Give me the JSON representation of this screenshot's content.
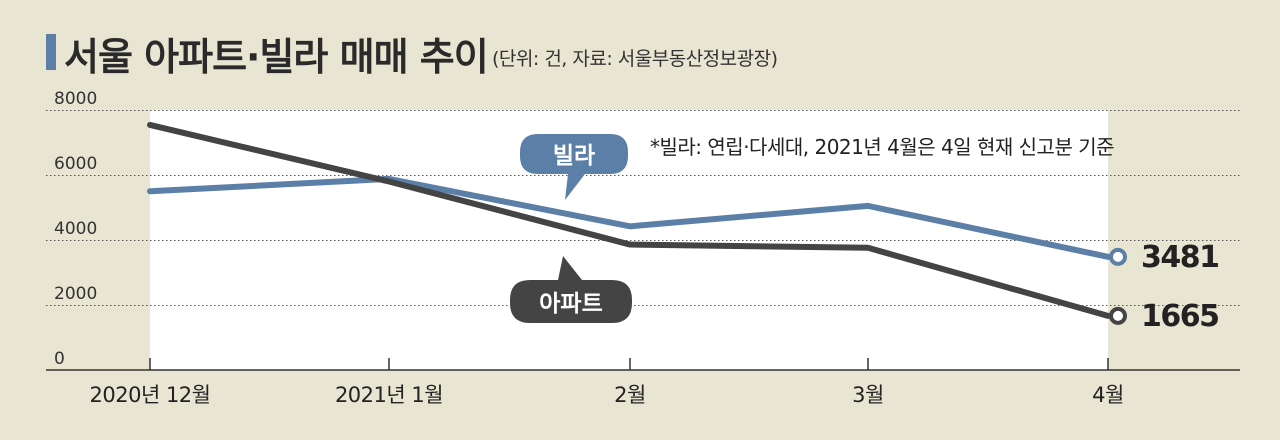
{
  "title": "서울 아파트·빌라 매매 추이",
  "subtitle": "(단위: 건, 자료: 서울부동산정보광장)",
  "note": "*빌라: 연립·다세대, 2021년 4월은 4일 현재 신고분 기준",
  "colors": {
    "villa": "#5b7fa6",
    "apartment": "#444444",
    "background": "#e8e5d3",
    "plot_fill": "#ffffff"
  },
  "chart_data": {
    "type": "line",
    "title": "서울 아파트·빌라 매매 추이",
    "categories": [
      "2020년 12월",
      "2021년 1월",
      "2월",
      "3월",
      "4월"
    ],
    "yticks": [
      "0",
      "2000",
      "4000",
      "6000",
      "8000"
    ],
    "ylim": [
      0,
      8000
    ],
    "grid": true,
    "series": [
      {
        "name": "빌라",
        "values": [
          5500,
          5880,
          4420,
          5050,
          3481
        ],
        "end_label": "3481"
      },
      {
        "name": "아파트",
        "values": [
          7540,
          5800,
          3860,
          3760,
          1665
        ],
        "end_label": "1665"
      }
    ]
  }
}
